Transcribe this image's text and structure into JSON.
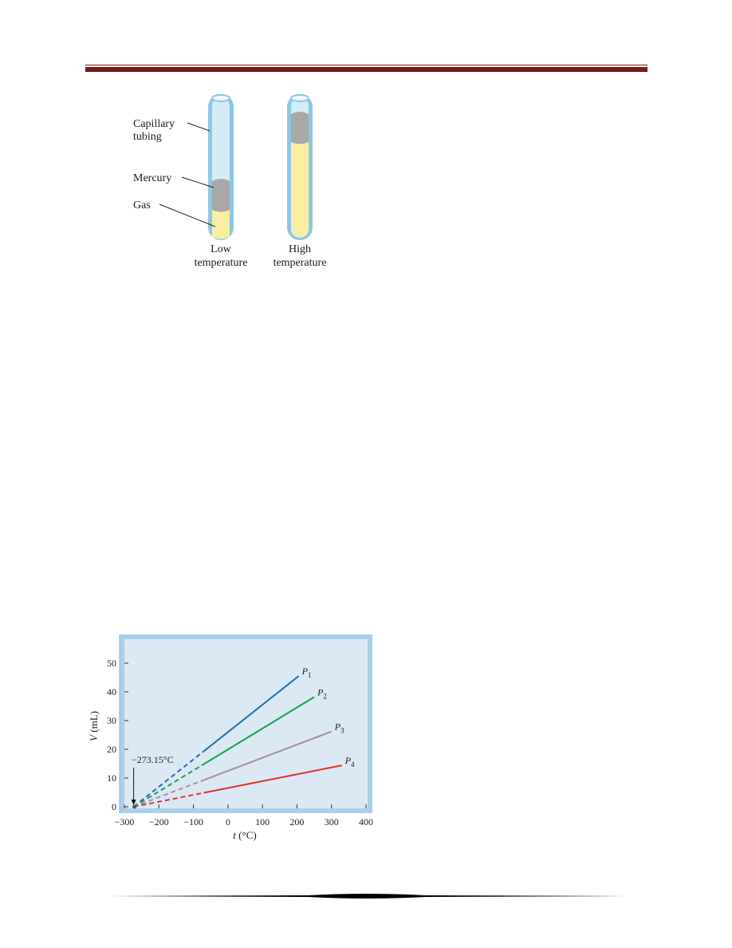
{
  "tubes_figure": {
    "labels": {
      "capillary_line1": "Capillary",
      "capillary_line2": "tubing",
      "mercury": "Mercury",
      "gas": "Gas"
    },
    "captions": {
      "low_line1": "Low",
      "low_line2": "temperature",
      "high_line1": "High",
      "high_line2": "temperature"
    },
    "colors": {
      "tube_outline": "#8ac8e6",
      "tube_glass": "#d4ecf7",
      "mercury": "#a8a8a8",
      "gas": "#fbeea3"
    }
  },
  "chart_data": {
    "type": "line",
    "title": "",
    "xlabel_var": "t",
    "xlabel_unit": " (°C)",
    "ylabel_var": "V",
    "ylabel_unit": " (mL)",
    "xlim": [
      -300,
      400
    ],
    "ylim": [
      0,
      50
    ],
    "x_ticks": [
      -300,
      -200,
      -100,
      0,
      100,
      200,
      300,
      400
    ],
    "x_tick_labels": [
      "−300",
      "−200",
      "−100",
      "0",
      "100",
      "200",
      "300",
      "400"
    ],
    "y_ticks": [
      0,
      10,
      20,
      30,
      40,
      50
    ],
    "y_tick_labels": [
      "0",
      "10",
      "20",
      "30",
      "40",
      "50"
    ],
    "annotation": "−273.15°C",
    "annotation_x": -273.15,
    "extrapolation_end_x": -70,
    "series": [
      {
        "name": "P",
        "sub": "1",
        "color": "#1f6fb2",
        "x": [
          -273.15,
          205
        ],
        "y": [
          0,
          45.5
        ]
      },
      {
        "name": "P",
        "sub": "2",
        "color": "#13a14f",
        "x": [
          -273.15,
          250
        ],
        "y": [
          0,
          38.2
        ]
      },
      {
        "name": "P",
        "sub": "3",
        "color": "#a48eab",
        "x": [
          -273.15,
          300
        ],
        "y": [
          0,
          26.2
        ]
      },
      {
        "name": "P",
        "sub": "4",
        "color": "#e2322b",
        "x": [
          -273.15,
          330
        ],
        "y": [
          0,
          14.4
        ]
      }
    ],
    "colors": {
      "background": "#dbe9f5",
      "frame": "#a9d0ea",
      "axis": "#333333"
    }
  }
}
